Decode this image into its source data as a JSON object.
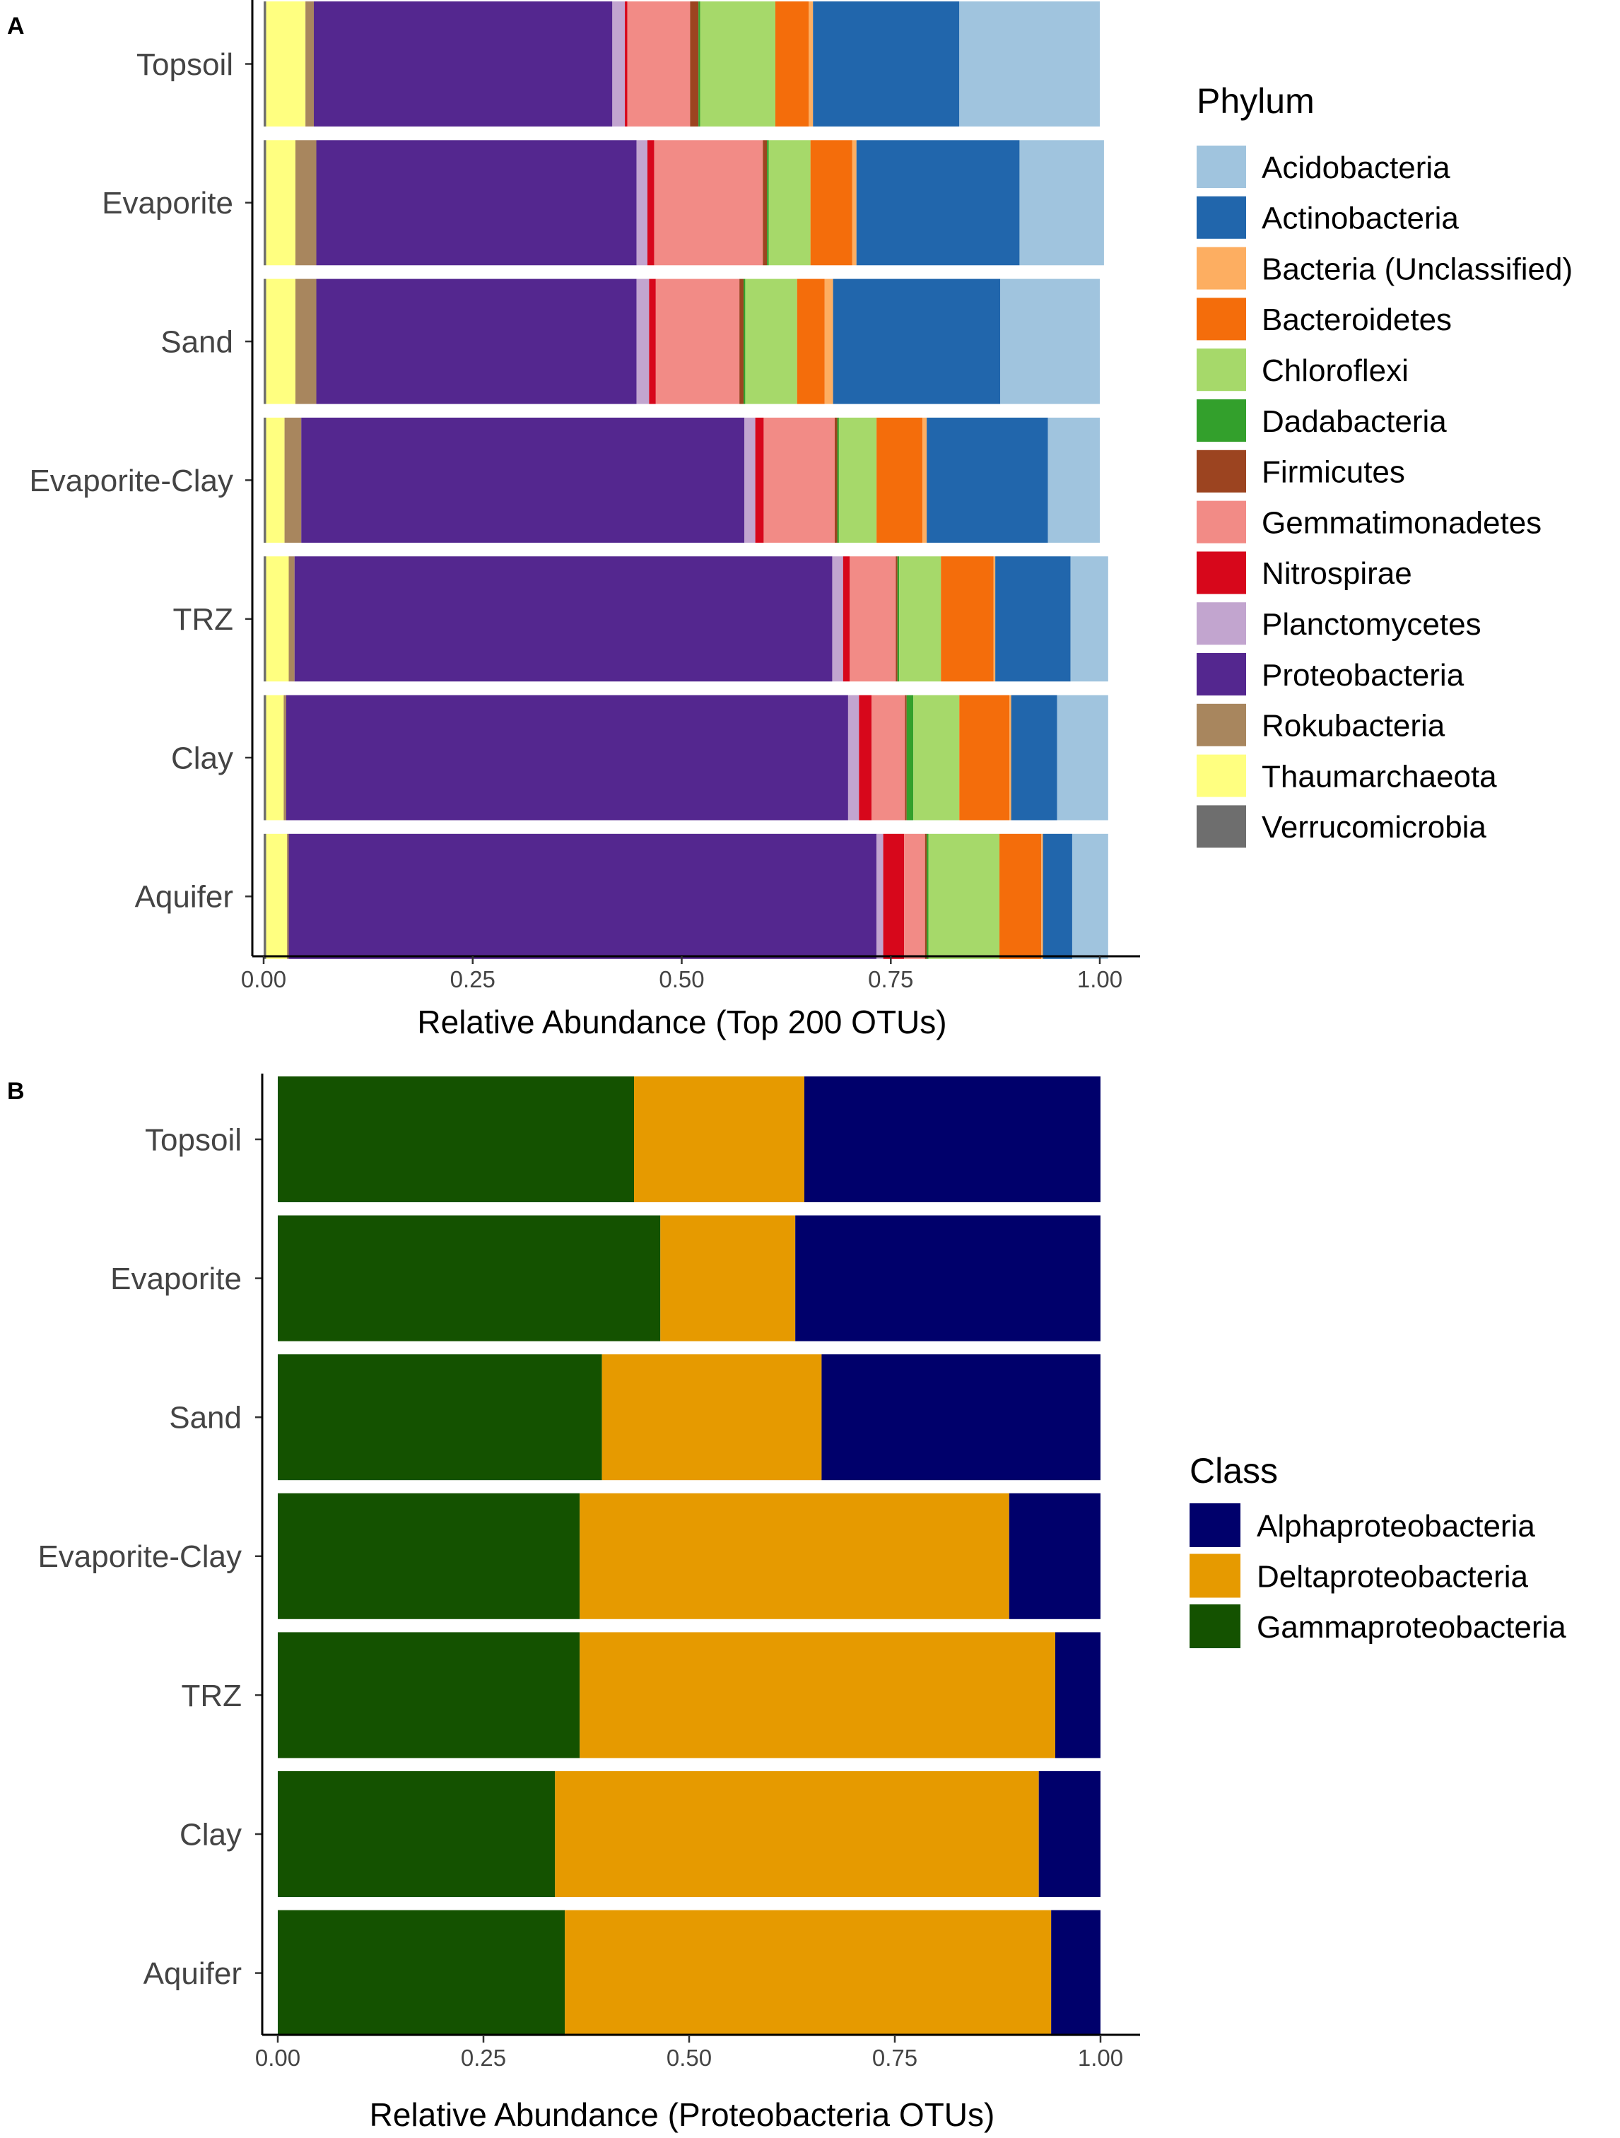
{
  "chart_data": [
    {
      "type": "bar",
      "orientation": "horizontal",
      "stacked": true,
      "panel_label": "A",
      "title": "",
      "xlabel": "Relative Abundance (Top 200 OTUs)",
      "ylabel": "",
      "xlim": [
        0,
        1
      ],
      "x_ticks": [
        "0.00",
        "0.25",
        "0.50",
        "0.75",
        "1.00"
      ],
      "categories": [
        "Topsoil",
        "Evaporite",
        "Sand",
        "Evaporite-Clay",
        "TRZ",
        "Clay",
        "Aquifer"
      ],
      "legend": {
        "title": "Phylum",
        "position": "right",
        "entries": [
          "Acidobacteria",
          "Actinobacteria",
          "Bacteria (Unclassified)",
          "Bacteroidetes",
          "Chloroflexi",
          "Dadabacteria",
          "Firmicutes",
          "Gemmatimonadetes",
          "Nitrospirae",
          "Planctomycetes",
          "Proteobacteria",
          "Rokubacteria",
          "Thaumarchaeota",
          "Verrucomicrobia"
        ]
      },
      "colors": {
        "Acidobacteria": "#a0c4de",
        "Actinobacteria": "#2166ac",
        "Bacteria (Unclassified)": "#fdae61",
        "Bacteroidetes": "#f46d0b",
        "Chloroflexi": "#a6d96a",
        "Dadabacteria": "#33a02c",
        "Firmicutes": "#9c4420",
        "Gemmatimonadetes": "#f28b86",
        "Nitrospirae": "#d7071b",
        "Planctomycetes": "#c2a5cf",
        "Proteobacteria": "#54278f",
        "Rokubacteria": "#a8865e",
        "Thaumarchaeota": "#ffff80",
        "Verrucomicrobia": "#6e6e6e"
      },
      "stack_order": [
        "Verrucomicrobia",
        "Thaumarchaeota",
        "Rokubacteria",
        "Proteobacteria",
        "Planctomycetes",
        "Nitrospirae",
        "Gemmatimonadetes",
        "Firmicutes",
        "Dadabacteria",
        "Chloroflexi",
        "Bacteroidetes",
        "Bacteria (Unclassified)",
        "Actinobacteria",
        "Acidobacteria"
      ],
      "series": [
        {
          "name": "Verrucomicrobia",
          "values": [
            0.003,
            0.003,
            0.003,
            0.003,
            0.003,
            0.003,
            0.003
          ]
        },
        {
          "name": "Thaumarchaeota",
          "values": [
            0.047,
            0.035,
            0.035,
            0.022,
            0.027,
            0.021,
            0.025
          ]
        },
        {
          "name": "Rokubacteria",
          "values": [
            0.01,
            0.025,
            0.025,
            0.02,
            0.007,
            0.003,
            0.002
          ]
        },
        {
          "name": "Proteobacteria",
          "values": [
            0.357,
            0.383,
            0.383,
            0.53,
            0.643,
            0.672,
            0.703
          ]
        },
        {
          "name": "Planctomycetes",
          "values": [
            0.015,
            0.013,
            0.015,
            0.013,
            0.013,
            0.013,
            0.008
          ]
        },
        {
          "name": "Nitrospirae",
          "values": [
            0.003,
            0.008,
            0.008,
            0.01,
            0.008,
            0.015,
            0.025
          ]
        },
        {
          "name": "Gemmatimonadetes",
          "values": [
            0.075,
            0.13,
            0.1,
            0.085,
            0.055,
            0.04,
            0.025
          ]
        },
        {
          "name": "Firmicutes",
          "values": [
            0.01,
            0.005,
            0.005,
            0.003,
            0.002,
            0.002,
            0.002
          ]
        },
        {
          "name": "Dadabacteria",
          "values": [
            0.002,
            0.002,
            0.002,
            0.002,
            0.002,
            0.008,
            0.002
          ]
        },
        {
          "name": "Chloroflexi",
          "values": [
            0.09,
            0.05,
            0.062,
            0.045,
            0.05,
            0.055,
            0.085
          ]
        },
        {
          "name": "Bacteroidetes",
          "values": [
            0.04,
            0.05,
            0.033,
            0.055,
            0.063,
            0.06,
            0.05
          ]
        },
        {
          "name": "Bacteria (Unclassified)",
          "values": [
            0.005,
            0.005,
            0.01,
            0.005,
            0.002,
            0.002,
            0.002
          ]
        },
        {
          "name": "Actinobacteria",
          "values": [
            0.175,
            0.195,
            0.2,
            0.145,
            0.09,
            0.055,
            0.035
          ]
        },
        {
          "name": "Acidobacteria",
          "values": [
            0.168,
            0.101,
            0.119,
            0.062,
            0.045,
            0.061,
            0.043
          ]
        }
      ]
    },
    {
      "type": "bar",
      "orientation": "horizontal",
      "stacked": true,
      "panel_label": "B",
      "title": "",
      "xlabel": "Relative Abundance (Proteobacteria OTUs)",
      "ylabel": "",
      "xlim": [
        0,
        1
      ],
      "x_ticks": [
        "0.00",
        "0.25",
        "0.50",
        "0.75",
        "1.00"
      ],
      "categories": [
        "Topsoil",
        "Evaporite",
        "Sand",
        "Evaporite-Clay",
        "TRZ",
        "Clay",
        "Aquifer"
      ],
      "legend": {
        "title": "Class",
        "position": "right",
        "entries": [
          "Alphaproteobacteria",
          "Deltaproteobacteria",
          "Gammaproteobacteria"
        ]
      },
      "colors": {
        "Alphaproteobacteria": "#00006b",
        "Deltaproteobacteria": "#e69a00",
        "Gammaproteobacteria": "#145200"
      },
      "stack_order": [
        "Gammaproteobacteria",
        "Deltaproteobacteria",
        "Alphaproteobacteria"
      ],
      "series": [
        {
          "name": "Gammaproteobacteria",
          "values": [
            0.433,
            0.465,
            0.394,
            0.367,
            0.367,
            0.337,
            0.349
          ]
        },
        {
          "name": "Deltaproteobacteria",
          "values": [
            0.207,
            0.164,
            0.267,
            0.522,
            0.578,
            0.588,
            0.591
          ]
        },
        {
          "name": "Alphaproteobacteria",
          "values": [
            0.36,
            0.371,
            0.339,
            0.111,
            0.055,
            0.075,
            0.06
          ]
        }
      ]
    }
  ]
}
